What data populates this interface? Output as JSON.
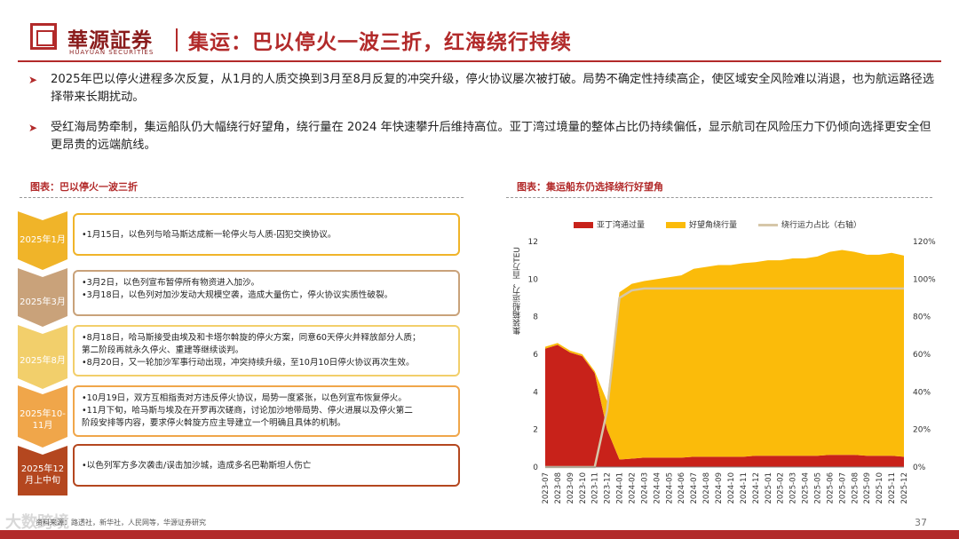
{
  "header": {
    "brand_cn": "華源証券",
    "brand_en": "HUAYUAN SECURITIES",
    "title": "集运：巴以停火一波三折，红海绕行持续"
  },
  "bullets": [
    {
      "arrow": "➤",
      "text": "2025年巴以停火进程多次反复，从1月的人质交换到3月至8月反复的冲突升级，停火协议屡次被打破。局势不确定性持续高企，使区域安全风险难以消退，也为航运路径选择带来长期扰动。"
    },
    {
      "arrow": "➤",
      "text": "受红海局势牵制，集运船队仍大幅绕行好望角，绕行量在 2024 年快速攀升后维持高位。亚丁湾过境量的整体占比仍持续偏低，显示航司在风险压力下仍倾向选择更安全但更昂贵的远端航线。"
    }
  ],
  "figures": {
    "left_title": "图表：巴以停火一波三折",
    "right_title": "图表：集运船东仍选择绕行好望角"
  },
  "timeline": [
    {
      "label": "2025年1月",
      "color": "#f0b429",
      "lines": [
        "•1月15日，以色列与哈马斯达成新一轮停火与人质-囚犯交换协议。"
      ]
    },
    {
      "label": "2025年3月",
      "color": "#c9a27a",
      "lines": [
        "•3月2日，以色列宣布暂停所有物资进入加沙。",
        "•3月18日，以色列对加沙发动大规模空袭，造成大量伤亡，停火协议实质性破裂。"
      ]
    },
    {
      "label": "2025年8月",
      "color": "#f2cf6b",
      "lines": [
        "•8月18日，哈马斯接受由埃及和卡塔尔斡旋的停火方案，同意60天停火并释放部分人质；",
        "第二阶段再就永久停火、重建等继续谈判。",
        "•8月20日，又一轮加沙军事行动出现，冲突持续升级，至10月10日停火协议再次生效。"
      ]
    },
    {
      "label": "2025年10-11月",
      "color": "#f0a64a",
      "lines": [
        "•10月19日，双方互相指责对方违反停火协议，局势一度紧张，以色列宣布恢复停火。",
        "•11月下旬，哈马斯与埃及在开罗再次磋商，讨论加沙地带局势、停火进展以及停火第二",
        "阶段安排等内容，要求停火斡旋方应主导建立一个明确且具体的机制。"
      ]
    },
    {
      "label": "2025年12月上中旬",
      "color": "#b4471f",
      "lines": [
        "•以色列军方多次袭击/误击加沙城，造成多名巴勒斯坦人伤亡"
      ]
    }
  ],
  "chart_data": {
    "type": "area",
    "title": "",
    "legend": [
      "亚丁湾通过量",
      "好望角绕行量",
      "绕行运力占比（右轴）"
    ],
    "legend_placement": "top",
    "colors": {
      "aden": "#c8221a",
      "cape": "#fbbb0a",
      "share": "#d6c7a9"
    },
    "ylabel": "集装箱船运力，百万TEU",
    "yticks": [
      "0",
      "2",
      "4",
      "6",
      "8",
      "10",
      "12"
    ],
    "ylim": [
      0,
      12
    ],
    "y2ticks": [
      "0%",
      "20%",
      "40%",
      "60%",
      "80%",
      "100%",
      "120%"
    ],
    "y2lim": [
      0,
      1.2
    ],
    "x": [
      "2023-07",
      "2023-08",
      "2023-09",
      "2023-10",
      "2023-11",
      "2023-12",
      "2024-01",
      "2024-02",
      "2024-03",
      "2024-04",
      "2024-05",
      "2024-06",
      "2024-07",
      "2024-08",
      "2024-09",
      "2024-10",
      "2024-11",
      "2024-12",
      "2025-01",
      "2025-02",
      "2025-03",
      "2025-04",
      "2025-05",
      "2025-06",
      "2025-07",
      "2025-08",
      "2025-09",
      "2025-10",
      "2025-11",
      "2025-12"
    ],
    "series": [
      {
        "name": "亚丁湾通过量",
        "values": [
          6.3,
          6.5,
          6.1,
          5.9,
          5.0,
          2.0,
          0.4,
          0.45,
          0.5,
          0.5,
          0.5,
          0.5,
          0.55,
          0.55,
          0.55,
          0.55,
          0.55,
          0.6,
          0.6,
          0.6,
          0.6,
          0.6,
          0.6,
          0.65,
          0.65,
          0.65,
          0.6,
          0.6,
          0.6,
          0.55
        ]
      },
      {
        "name": "好望角绕行量",
        "values": [
          0.1,
          0.1,
          0.1,
          0.1,
          0.1,
          1.5,
          8.9,
          9.3,
          9.4,
          9.5,
          9.6,
          9.7,
          10.0,
          10.1,
          10.2,
          10.2,
          10.3,
          10.3,
          10.4,
          10.4,
          10.5,
          10.5,
          10.6,
          10.8,
          10.9,
          10.8,
          10.7,
          10.7,
          10.8,
          10.7
        ]
      },
      {
        "name": "绕行运力占比（右轴）",
        "values": [
          0.0,
          0.0,
          0.0,
          0.0,
          0.0,
          0.3,
          0.9,
          0.94,
          0.95,
          0.95,
          0.95,
          0.95,
          0.95,
          0.95,
          0.95,
          0.95,
          0.95,
          0.95,
          0.95,
          0.95,
          0.95,
          0.95,
          0.95,
          0.95,
          0.95,
          0.95,
          0.95,
          0.95,
          0.95,
          0.95
        ]
      }
    ]
  },
  "footer": {
    "source": "资料来源：路透社，新华社，人民网等，华源证券研究",
    "page": "37",
    "watermark": "大数跨境"
  }
}
